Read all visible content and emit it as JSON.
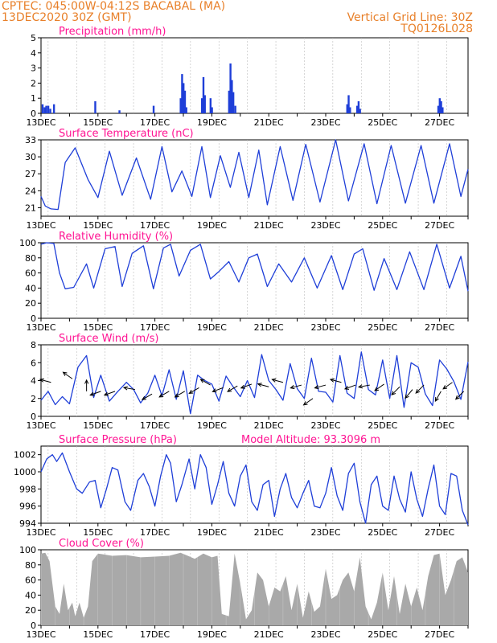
{
  "header": {
    "line1_left": "CPTEC:  045:00W-04:12S  BACABAL (MA)",
    "line2_left": "13DEC2020 30Z (GMT)",
    "line2_right": "Vertical Grid Line: 30Z",
    "line3_right": "TQ0126L028"
  },
  "colors": {
    "header": "#e8802a",
    "title": "#ff1493",
    "series": "#1f3fd8",
    "bars": "#1f3fd8",
    "cloud": "#a9a9a9",
    "wind": "#000000",
    "grid": "#000000"
  },
  "x_tick_labels": [
    "13DEC",
    "15DEC",
    "17DEC",
    "19DEC",
    "21DEC",
    "23DEC",
    "25DEC",
    "27DEC"
  ],
  "chart_data": [
    {
      "id": "precip",
      "type": "bar",
      "title": "Precipitation (mm/h)",
      "ylim": [
        0,
        5
      ],
      "yticks": [
        "0",
        "1",
        "2",
        "3",
        "4",
        "5"
      ],
      "x_range_days": [
        13,
        28
      ],
      "bars": [
        [
          13.05,
          0.6
        ],
        [
          13.12,
          0.4
        ],
        [
          13.18,
          0.5
        ],
        [
          13.25,
          0.5
        ],
        [
          13.32,
          0.3
        ],
        [
          13.45,
          0.6
        ],
        [
          14.9,
          0.8
        ],
        [
          15.75,
          0.2
        ],
        [
          16.95,
          0.5
        ],
        [
          17.9,
          1.0
        ],
        [
          17.95,
          2.6
        ],
        [
          18.0,
          2.0
        ],
        [
          18.05,
          1.5
        ],
        [
          18.1,
          0.4
        ],
        [
          18.65,
          1.0
        ],
        [
          18.7,
          2.4
        ],
        [
          18.75,
          1.2
        ],
        [
          18.95,
          1.0
        ],
        [
          19.0,
          0.4
        ],
        [
          19.6,
          1.5
        ],
        [
          19.65,
          3.3
        ],
        [
          19.7,
          2.2
        ],
        [
          19.75,
          1.4
        ],
        [
          19.82,
          0.5
        ],
        [
          23.75,
          0.6
        ],
        [
          23.8,
          1.2
        ],
        [
          23.85,
          0.4
        ],
        [
          24.1,
          0.5
        ],
        [
          24.15,
          0.8
        ],
        [
          24.2,
          0.3
        ],
        [
          26.95,
          0.5
        ],
        [
          27.0,
          1.0
        ],
        [
          27.05,
          0.8
        ],
        [
          27.1,
          0.4
        ]
      ]
    },
    {
      "id": "temp",
      "type": "line",
      "title": "Surface Temperature (nC)",
      "ylim": [
        19.5,
        33
      ],
      "yticks": [
        "21",
        "24",
        "27",
        "30",
        "33"
      ],
      "x": [
        13.0,
        13.15,
        13.35,
        13.6,
        13.85,
        14.2,
        14.65,
        15.0,
        15.4,
        15.85,
        16.35,
        16.85,
        17.25,
        17.6,
        17.95,
        18.3,
        18.65,
        18.95,
        19.3,
        19.65,
        19.95,
        20.3,
        20.65,
        20.95,
        21.4,
        21.85,
        22.3,
        22.8,
        23.35,
        23.8,
        24.35,
        24.8,
        25.3,
        25.8,
        26.35,
        26.8,
        27.35,
        27.75,
        28.0
      ],
      "y": [
        23.0,
        21.3,
        20.8,
        20.7,
        29.0,
        31.6,
        26.0,
        22.8,
        31.0,
        23.2,
        29.8,
        22.5,
        31.8,
        23.8,
        27.5,
        23.0,
        31.8,
        22.8,
        30.2,
        24.6,
        30.8,
        22.8,
        31.2,
        21.5,
        31.8,
        22.3,
        32.2,
        22.0,
        33.0,
        22.2,
        32.3,
        21.7,
        32.0,
        21.8,
        32.0,
        21.8,
        32.3,
        23.0,
        27.8
      ]
    },
    {
      "id": "rh",
      "type": "line",
      "title": "Relative Humidity (%)",
      "ylim": [
        0,
        100
      ],
      "yticks": [
        "0",
        "20",
        "40",
        "60",
        "80",
        "100"
      ],
      "x": [
        13.0,
        13.2,
        13.45,
        13.65,
        13.85,
        14.15,
        14.6,
        14.85,
        15.25,
        15.6,
        15.85,
        16.2,
        16.6,
        16.95,
        17.3,
        17.55,
        17.85,
        18.25,
        18.6,
        18.95,
        19.25,
        19.6,
        19.95,
        20.3,
        20.6,
        20.95,
        21.35,
        21.8,
        22.25,
        22.7,
        23.2,
        23.6,
        24.0,
        24.3,
        24.7,
        25.05,
        25.5,
        25.95,
        26.45,
        26.9,
        27.35,
        27.75,
        28.0
      ],
      "y": [
        98.0,
        100.0,
        99.0,
        60.0,
        39.0,
        41.0,
        72.0,
        40.0,
        92.0,
        95.0,
        42.0,
        86.0,
        96.0,
        39.0,
        93.0,
        98.0,
        56.0,
        90.0,
        98.0,
        52.0,
        62.0,
        75.0,
        48.0,
        80.0,
        85.0,
        42.0,
        72.0,
        48.0,
        80.0,
        40.0,
        83.0,
        38.0,
        85.0,
        92.0,
        37.0,
        79.0,
        38.0,
        88.0,
        38.0,
        98.0,
        40.0,
        82.0,
        36.0
      ]
    },
    {
      "id": "wind",
      "type": "line",
      "title": "Surface Wind (m/s)",
      "ylim": [
        0,
        8
      ],
      "yticks": [
        "0",
        "2",
        "4",
        "6",
        "8"
      ],
      "x": [
        13.0,
        13.25,
        13.5,
        13.75,
        14.0,
        14.3,
        14.6,
        14.85,
        15.1,
        15.4,
        15.7,
        16.0,
        16.25,
        16.5,
        16.75,
        17.0,
        17.25,
        17.5,
        17.75,
        18.0,
        18.25,
        18.5,
        18.75,
        19.0,
        19.25,
        19.5,
        19.75,
        20.0,
        20.25,
        20.5,
        20.75,
        21.0,
        21.25,
        21.5,
        21.75,
        22.0,
        22.25,
        22.5,
        22.75,
        23.0,
        23.25,
        23.5,
        23.75,
        24.0,
        24.25,
        24.5,
        24.75,
        25.0,
        25.25,
        25.5,
        25.75,
        26.0,
        26.25,
        26.5,
        26.75,
        27.0,
        27.25,
        27.5,
        27.75,
        28.0
      ],
      "y": [
        1.8,
        2.8,
        1.3,
        2.2,
        1.4,
        5.5,
        6.8,
        2.1,
        4.6,
        1.7,
        2.8,
        3.8,
        3.0,
        1.5,
        2.6,
        4.6,
        2.3,
        5.2,
        1.9,
        5.1,
        0.3,
        4.6,
        4.0,
        3.6,
        1.7,
        4.5,
        3.3,
        2.2,
        4.0,
        2.1,
        6.9,
        4.0,
        3.0,
        1.8,
        5.9,
        3.1,
        2.0,
        6.5,
        2.8,
        2.7,
        1.6,
        6.8,
        2.6,
        2.0,
        7.2,
        3.0,
        2.4,
        6.3,
        2.0,
        6.8,
        1.0,
        6.0,
        5.5,
        2.5,
        1.2,
        6.3,
        5.3,
        3.9,
        1.9,
        6.1
      ]
    },
    {
      "id": "pressure",
      "type": "line",
      "title": "Surface Pressure (hPa)",
      "annotation": "Model Altitude: 93.3096 m",
      "ylim": [
        994,
        1003
      ],
      "yticks": [
        "994",
        "996",
        "998",
        "1000",
        "1002"
      ],
      "x": [
        13.0,
        13.2,
        13.4,
        13.55,
        13.75,
        14.0,
        14.25,
        14.45,
        14.7,
        14.9,
        15.1,
        15.3,
        15.5,
        15.7,
        15.95,
        16.15,
        16.4,
        16.6,
        16.8,
        17.0,
        17.2,
        17.4,
        17.55,
        17.75,
        17.95,
        18.2,
        18.4,
        18.6,
        18.8,
        19.0,
        19.2,
        19.4,
        19.6,
        19.8,
        20.0,
        20.2,
        20.4,
        20.6,
        20.8,
        21.0,
        21.2,
        21.4,
        21.6,
        21.8,
        22.0,
        22.2,
        22.4,
        22.6,
        22.8,
        23.0,
        23.2,
        23.4,
        23.6,
        23.8,
        24.0,
        24.2,
        24.4,
        24.6,
        24.8,
        25.0,
        25.2,
        25.4,
        25.6,
        25.8,
        26.0,
        26.2,
        26.4,
        26.6,
        26.8,
        27.0,
        27.2,
        27.4,
        27.6,
        27.8,
        28.0
      ],
      "y": [
        1000.0,
        1001.5,
        1002.0,
        1001.2,
        1002.2,
        1000.0,
        998.0,
        997.5,
        998.8,
        999.0,
        995.8,
        998.0,
        1000.5,
        1000.2,
        996.5,
        995.5,
        999.0,
        999.8,
        998.3,
        996.0,
        999.5,
        1002.0,
        1001.0,
        996.5,
        998.5,
        1001.5,
        998.0,
        1002.0,
        1000.5,
        996.2,
        998.5,
        1001.2,
        997.5,
        996.0,
        999.5,
        1000.8,
        996.5,
        995.5,
        998.5,
        999.0,
        994.8,
        998.0,
        999.8,
        997.0,
        995.8,
        997.5,
        999.0,
        996.0,
        995.8,
        997.5,
        1000.5,
        997.2,
        995.5,
        999.8,
        1001.0,
        996.5,
        994.0,
        998.5,
        999.5,
        996.0,
        995.5,
        999.5,
        996.8,
        995.3,
        1000.0,
        996.8,
        994.8,
        998.0,
        1000.8,
        996.0,
        995.0,
        999.8,
        999.5,
        995.5,
        993.8
      ]
    },
    {
      "id": "cloud",
      "type": "area",
      "title": "Cloud Cover (%)",
      "ylim": [
        0,
        100
      ],
      "yticks": [
        "0",
        "20",
        "40",
        "60",
        "80",
        "100"
      ],
      "x": [
        13.0,
        13.15,
        13.3,
        13.5,
        13.65,
        13.8,
        13.95,
        14.1,
        14.2,
        14.35,
        14.5,
        14.65,
        14.8,
        15.0,
        15.5,
        16.0,
        16.5,
        17.0,
        17.5,
        17.9,
        18.1,
        18.4,
        18.7,
        19.0,
        19.2,
        19.35,
        19.6,
        19.8,
        20.0,
        20.2,
        20.4,
        20.6,
        20.8,
        21.0,
        21.2,
        21.4,
        21.6,
        21.8,
        22.0,
        22.2,
        22.4,
        22.6,
        22.8,
        23.0,
        23.2,
        23.4,
        23.6,
        23.8,
        24.0,
        24.2,
        24.4,
        24.6,
        24.8,
        25.0,
        25.2,
        25.4,
        25.6,
        25.8,
        26.0,
        26.2,
        26.4,
        26.6,
        26.8,
        27.0,
        27.2,
        27.4,
        27.6,
        27.8,
        28.0
      ],
      "y": [
        95.0,
        96.0,
        85.0,
        25.0,
        15.0,
        55.0,
        20.0,
        30.0,
        12.0,
        30.0,
        10.0,
        25.0,
        85.0,
        95.0,
        92.0,
        93.0,
        90.0,
        91.0,
        92.0,
        96.0,
        93.0,
        88.0,
        95.0,
        90.0,
        92.0,
        15.0,
        12.0,
        95.0,
        55.0,
        8.0,
        20.0,
        70.0,
        60.0,
        25.0,
        50.0,
        45.0,
        65.0,
        20.0,
        55.0,
        10.0,
        45.0,
        18.0,
        25.0,
        75.0,
        35.0,
        40.0,
        60.0,
        70.0,
        45.0,
        90.0,
        25.0,
        8.0,
        30.0,
        70.0,
        20.0,
        65.0,
        15.0,
        55.0,
        25.0,
        50.0,
        20.0,
        65.0,
        93.0,
        95.0,
        40.0,
        60.0,
        85.0,
        90.0,
        70.0
      ]
    }
  ],
  "wind_arrows": [
    {
      "x": 13.35,
      "y": 3.8,
      "a": 165
    },
    {
      "x": 14.1,
      "y": 4.2,
      "a": 145
    },
    {
      "x": 14.6,
      "y": 2.8,
      "a": 90
    },
    {
      "x": 15.1,
      "y": 2.8,
      "a": 200
    },
    {
      "x": 15.6,
      "y": 2.8,
      "a": 200
    },
    {
      "x": 16.3,
      "y": 3.0,
      "a": 170
    },
    {
      "x": 16.9,
      "y": 2.5,
      "a": 210
    },
    {
      "x": 17.5,
      "y": 2.8,
      "a": 210
    },
    {
      "x": 18.05,
      "y": 2.8,
      "a": 210
    },
    {
      "x": 18.55,
      "y": 3.2,
      "a": 210
    },
    {
      "x": 18.95,
      "y": 3.5,
      "a": 150
    },
    {
      "x": 19.4,
      "y": 3.2,
      "a": 200
    },
    {
      "x": 19.9,
      "y": 3.4,
      "a": 210
    },
    {
      "x": 20.4,
      "y": 3.6,
      "a": 200
    },
    {
      "x": 21.0,
      "y": 3.3,
      "a": 165
    },
    {
      "x": 21.5,
      "y": 3.8,
      "a": 165
    },
    {
      "x": 22.15,
      "y": 3.5,
      "a": 195
    },
    {
      "x": 22.55,
      "y": 2.0,
      "a": 215
    },
    {
      "x": 23.0,
      "y": 3.5,
      "a": 195
    },
    {
      "x": 23.55,
      "y": 3.8,
      "a": 165
    },
    {
      "x": 24.05,
      "y": 3.5,
      "a": 200
    },
    {
      "x": 24.55,
      "y": 3.5,
      "a": 190
    },
    {
      "x": 25.05,
      "y": 3.6,
      "a": 215
    },
    {
      "x": 25.6,
      "y": 3.3,
      "a": 225
    },
    {
      "x": 26.05,
      "y": 3.0,
      "a": 230
    },
    {
      "x": 26.45,
      "y": 3.5,
      "a": 225
    },
    {
      "x": 27.05,
      "y": 2.8,
      "a": 240
    },
    {
      "x": 27.45,
      "y": 3.8,
      "a": 215
    },
    {
      "x": 27.85,
      "y": 2.8,
      "a": 225
    }
  ]
}
